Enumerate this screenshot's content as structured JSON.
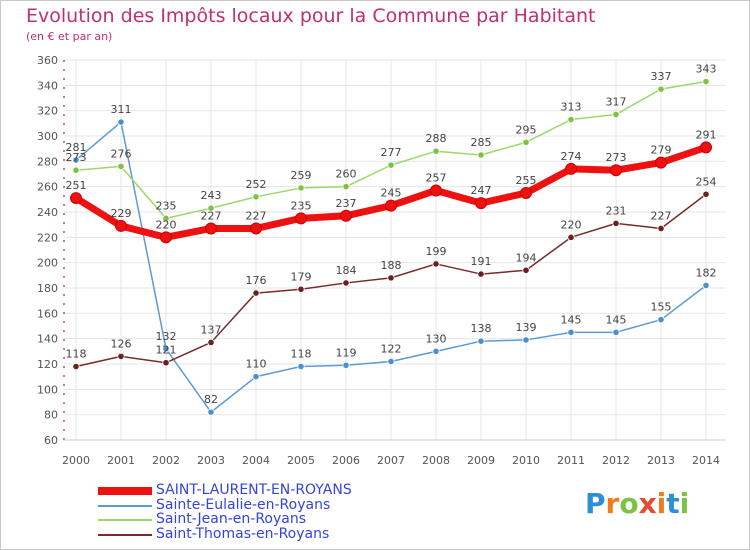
{
  "header": {
    "title": "Evolution des Impôts locaux pour la Commune par Habitant",
    "subtitle": "(en € et par an)"
  },
  "logo": {
    "text": "Proxiti"
  },
  "colors": {
    "grid": "#e6e6e6",
    "axis_text": "#555555",
    "title": "#c0306f",
    "legend_text": "#3344dd"
  },
  "chart_data": {
    "type": "line",
    "title": "Evolution des Impôts locaux pour la Commune par Habitant",
    "ylabel": "(en € et par an)",
    "xlabel": "",
    "x": [
      "2000",
      "2001",
      "2002",
      "2003",
      "2004",
      "2005",
      "2006",
      "2007",
      "2008",
      "2009",
      "2010",
      "2011",
      "2012",
      "2013",
      "2014"
    ],
    "yticks": [
      60,
      80,
      100,
      120,
      140,
      160,
      180,
      200,
      220,
      240,
      260,
      280,
      300,
      320,
      340,
      360
    ],
    "ylim": [
      60,
      360
    ],
    "grid": true,
    "legend_position": "bottom-left",
    "series": [
      {
        "name": "SAINT-LAURENT-EN-ROYANS",
        "color": "#ee1111",
        "marker": "#ee1111",
        "emphasis": true,
        "values": [
          251,
          229,
          220,
          227,
          227,
          235,
          237,
          245,
          257,
          247,
          255,
          274,
          273,
          279,
          291
        ]
      },
      {
        "name": "Sainte-Eulalie-en-Royans",
        "color": "#5b9bd5",
        "marker": "#4a8fd0",
        "emphasis": false,
        "values": [
          281,
          311,
          132,
          82,
          110,
          118,
          119,
          122,
          130,
          138,
          139,
          145,
          145,
          155,
          182
        ]
      },
      {
        "name": "Saint-Jean-en-Royans",
        "color": "#9bd86a",
        "marker": "#7cc243",
        "emphasis": false,
        "values": [
          273,
          276,
          235,
          243,
          252,
          259,
          260,
          277,
          288,
          285,
          295,
          313,
          317,
          337,
          343
        ]
      },
      {
        "name": "Saint-Thomas-en-Royans",
        "color": "#7a2a2a",
        "marker": "#6b1f1f",
        "emphasis": false,
        "values": [
          118,
          126,
          121,
          137,
          176,
          179,
          184,
          188,
          199,
          191,
          194,
          220,
          231,
          227,
          254
        ]
      }
    ]
  }
}
